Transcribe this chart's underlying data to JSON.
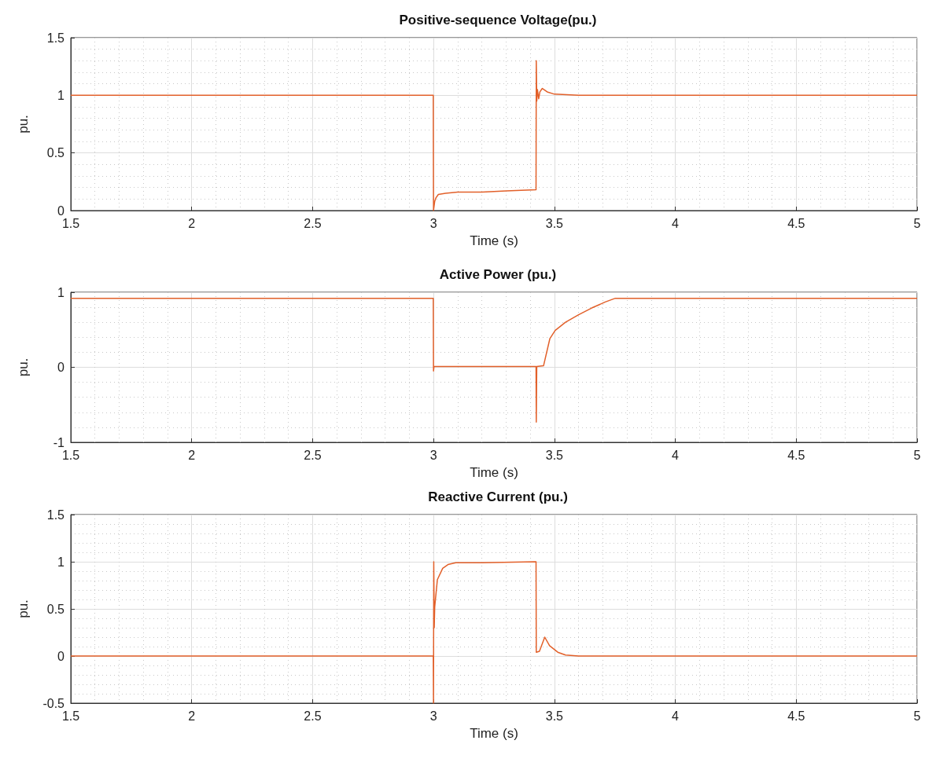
{
  "chart_data": [
    {
      "type": "line",
      "title": "Positive-sequence Voltage(pu.)",
      "xlabel": "Time (s)",
      "ylabel": "pu.",
      "xlim": [
        1.5,
        5
      ],
      "xticks": [
        1.5,
        2,
        2.5,
        3,
        3.5,
        4,
        4.5,
        5
      ],
      "ylim": [
        0,
        1.5
      ],
      "yticks": [
        0,
        0.5,
        1,
        1.5
      ],
      "grid": true,
      "series": [
        {
          "color": "#e2602a",
          "x": [
            1.5,
            2.999,
            3.0,
            3.005,
            3.01,
            3.02,
            3.05,
            3.1,
            3.2,
            3.3,
            3.424,
            3.425,
            3.427,
            3.43,
            3.435,
            3.44,
            3.45,
            3.47,
            3.5,
            3.6,
            5
          ],
          "values": [
            1.0,
            1.0,
            0.0,
            0.08,
            0.11,
            0.14,
            0.15,
            0.16,
            0.16,
            0.17,
            0.18,
            1.3,
            0.95,
            1.05,
            0.97,
            1.03,
            1.06,
            1.03,
            1.01,
            1.0,
            1.0
          ]
        }
      ]
    },
    {
      "type": "line",
      "title": "Active Power (pu.)",
      "xlabel": "Time (s)",
      "ylabel": "pu.",
      "xlim": [
        1.5,
        5
      ],
      "xticks": [
        1.5,
        2,
        2.5,
        3,
        3.5,
        4,
        4.5,
        5
      ],
      "ylim": [
        -1,
        1
      ],
      "yticks": [
        -1,
        0,
        1
      ],
      "grid": true,
      "series": [
        {
          "color": "#e2602a",
          "x": [
            1.5,
            2.999,
            3.0,
            3.002,
            3.2,
            3.424,
            3.425,
            3.427,
            3.455,
            3.481,
            3.503,
            3.546,
            3.6,
            3.654,
            3.71,
            3.752,
            5
          ],
          "values": [
            0.92,
            0.92,
            -0.05,
            0.01,
            0.01,
            0.01,
            -0.73,
            0.01,
            0.02,
            0.38,
            0.49,
            0.6,
            0.7,
            0.79,
            0.87,
            0.92,
            0.92
          ]
        }
      ]
    },
    {
      "type": "line",
      "title": "Reactive Current (pu.)",
      "xlabel": "Time (s)",
      "ylabel": "pu.",
      "xlim": [
        1.5,
        5
      ],
      "xticks": [
        1.5,
        2,
        2.5,
        3,
        3.5,
        4,
        4.5,
        5
      ],
      "ylim": [
        -0.5,
        1.5
      ],
      "yticks": [
        -0.5,
        0,
        0.5,
        1,
        1.5
      ],
      "grid": true,
      "series": [
        {
          "color": "#e2602a",
          "x": [
            1.5,
            2.999,
            3.0,
            3.001,
            3.003,
            3.005,
            3.016,
            3.038,
            3.06,
            3.092,
            3.2,
            3.424,
            3.425,
            3.438,
            3.46,
            3.48,
            3.514,
            3.546,
            3.6,
            5
          ],
          "values": [
            0.0,
            0.0,
            -0.5,
            1.0,
            0.3,
            0.52,
            0.81,
            0.93,
            0.97,
            0.99,
            0.99,
            1.0,
            0.04,
            0.05,
            0.2,
            0.11,
            0.04,
            0.01,
            0.0,
            0.0
          ]
        }
      ]
    }
  ]
}
